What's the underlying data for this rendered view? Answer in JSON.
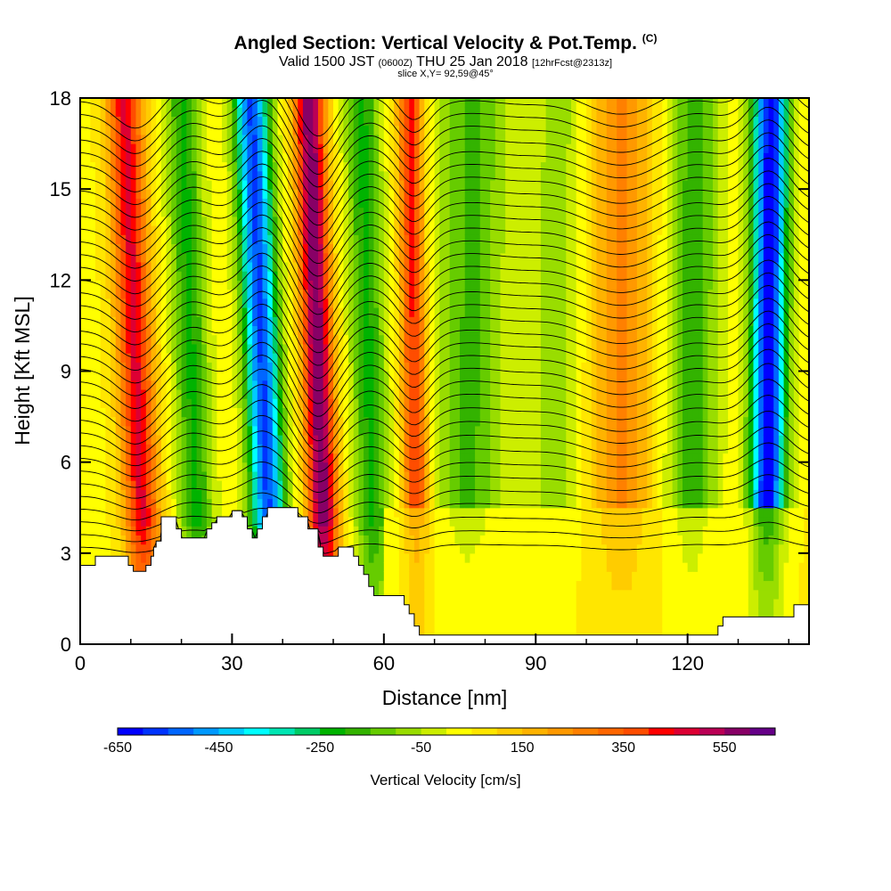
{
  "title": "Angled Section: Vertical Velocity & Pot.Temp.",
  "title_mark": "(C)",
  "subtitle_main_a": "Valid 1500 JST",
  "subtitle_utc": "(0600Z)",
  "subtitle_main_b": "THU 25 Jan 2018",
  "subtitle_fcst": "[12hrFcst@2313z]",
  "slice_note": "slice X,Y= 92,59@45°",
  "chart_data": {
    "type": "heatmap",
    "xlabel": "Distance [nm]",
    "ylabel": "Height [Kft MSL]",
    "xlim": [
      0,
      144
    ],
    "ylim": [
      0,
      18
    ],
    "x_ticks": [
      0,
      30,
      60,
      90,
      120
    ],
    "x_tick_labels": [
      "0",
      "30",
      "60",
      "90",
      "120"
    ],
    "y_ticks": [
      0,
      3,
      6,
      9,
      12,
      15,
      18
    ],
    "y_tick_labels": [
      "0",
      "3",
      "6",
      "9",
      "12",
      "15",
      "18"
    ],
    "colorbar": {
      "label": "Vertical Velocity [cm/s]",
      "range": [
        -650,
        650
      ],
      "tick_values": [
        -650,
        -450,
        -250,
        -50,
        150,
        350,
        550
      ],
      "tick_labels": [
        "-650",
        "-450",
        "-250",
        "-50",
        "150",
        "350",
        "550"
      ],
      "colors": [
        "#0000ff",
        "#0033ff",
        "#0066ff",
        "#0099ff",
        "#00ccff",
        "#00ffff",
        "#00e6b3",
        "#00cc66",
        "#00b300",
        "#33b300",
        "#66cc00",
        "#99dd00",
        "#ccee00",
        "#ffff00",
        "#ffe600",
        "#ffcc00",
        "#ffb300",
        "#ff9900",
        "#ff8000",
        "#ff6600",
        "#ff4d00",
        "#ff0000",
        "#dd0033",
        "#bb0055",
        "#880066",
        "#660088"
      ]
    },
    "velocity_features": [
      {
        "x": 11,
        "w": 3.5,
        "value": 420,
        "tilt": -0.25
      },
      {
        "x": 22,
        "w": 3.5,
        "value": -250,
        "tilt": -0.2
      },
      {
        "x": 36,
        "w": 3.5,
        "value": -600,
        "tilt": -0.25
      },
      {
        "x": 47,
        "w": 3.0,
        "value": 560,
        "tilt": -0.2
      },
      {
        "x": 57,
        "w": 3.5,
        "value": -250,
        "tilt": -0.15
      },
      {
        "x": 66,
        "w": 2.5,
        "value": 380,
        "tilt": -0.1
      },
      {
        "x": 77,
        "w": 7.0,
        "value": -200,
        "tilt": 0.05
      },
      {
        "x": 107,
        "w": 6.0,
        "value": 220,
        "tilt": 0
      },
      {
        "x": 94,
        "w": 5.0,
        "value": -120,
        "tilt": 0.05
      },
      {
        "x": 121,
        "w": 5.0,
        "value": -220,
        "tilt": 0.05
      },
      {
        "x": 136,
        "w": 3.5,
        "value": -680,
        "tilt": 0.05
      }
    ],
    "terrain_profile": {
      "x": [
        0,
        3,
        8,
        9.5,
        10.5,
        13,
        14,
        14.5,
        15,
        16,
        18,
        19,
        20,
        24,
        25,
        26,
        27,
        29,
        30,
        32,
        33,
        34,
        35,
        36,
        37,
        38,
        39,
        42,
        43,
        45,
        47,
        48,
        50,
        51,
        53,
        54,
        55,
        56,
        57,
        58,
        60,
        62,
        64,
        65,
        66,
        67,
        68,
        71,
        102,
        112,
        115,
        126,
        127,
        129,
        141,
        144
      ],
      "height": [
        2.6,
        2.9,
        2.9,
        2.6,
        2.4,
        2.6,
        2.9,
        3.2,
        3.4,
        4.2,
        4.2,
        3.8,
        3.5,
        3.5,
        3.8,
        4.0,
        4.2,
        4.2,
        4.4,
        4.2,
        3.8,
        3.5,
        3.8,
        4.2,
        4.5,
        4.5,
        4.5,
        4.5,
        4.2,
        3.8,
        3.2,
        2.9,
        2.9,
        3.2,
        3.2,
        2.9,
        2.6,
        2.3,
        1.9,
        1.6,
        1.6,
        1.6,
        1.3,
        1.0,
        0.6,
        0.3,
        0.3,
        0.3,
        0.3,
        0.3,
        0.3,
        0.6,
        0.9,
        0.9,
        1.3,
        1.3
      ]
    },
    "theta_contours": {
      "count": 36,
      "interval_note": ""
    }
  }
}
